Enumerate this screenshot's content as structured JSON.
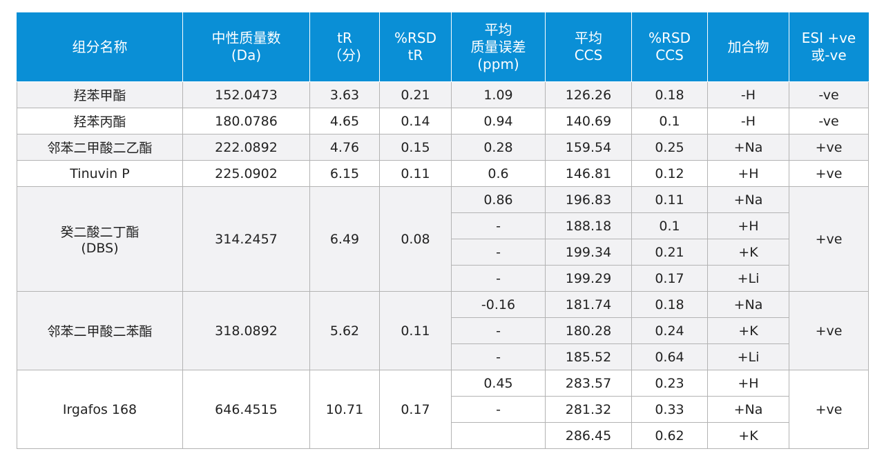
{
  "table": {
    "headers": [
      [
        "组分名称"
      ],
      [
        "中性质量数",
        "(Da)"
      ],
      [
        "tR",
        "（分)"
      ],
      [
        "%RSD",
        "tR"
      ],
      [
        "平均",
        "质量误差",
        "(ppm)"
      ],
      [
        "平均",
        "CCS"
      ],
      [
        "%RSD",
        "CCS"
      ],
      [
        "加合物"
      ],
      [
        "ESI +ve",
        "或-ve"
      ]
    ],
    "groups": [
      {
        "name": [
          "羟苯甲酯"
        ],
        "mass": "152.0473",
        "tr": "3.63",
        "rsd_tr": "0.21",
        "esi": "-ve",
        "adducts": [
          {
            "error": "1.09",
            "ccs": "126.26",
            "rsd_ccs": "0.18",
            "adduct": "-H"
          }
        ]
      },
      {
        "name": [
          "羟苯丙酯"
        ],
        "mass": "180.0786",
        "tr": "4.65",
        "rsd_tr": "0.14",
        "esi": "-ve",
        "adducts": [
          {
            "error": "0.94",
            "ccs": "140.69",
            "rsd_ccs": "0.1",
            "adduct": "-H"
          }
        ]
      },
      {
        "name": [
          "邻苯二甲酸二乙酯"
        ],
        "mass": "222.0892",
        "tr": "4.76",
        "rsd_tr": "0.15",
        "esi": "+ve",
        "adducts": [
          {
            "error": "0.28",
            "ccs": "159.54",
            "rsd_ccs": "0.25",
            "adduct": "+Na"
          }
        ]
      },
      {
        "name": [
          "Tinuvin P"
        ],
        "mass": "225.0902",
        "tr": "6.15",
        "rsd_tr": "0.11",
        "esi": "+ve",
        "adducts": [
          {
            "error": "0.6",
            "ccs": "146.81",
            "rsd_ccs": "0.12",
            "adduct": "+H"
          }
        ]
      },
      {
        "name": [
          "癸二酸二丁酯",
          "(DBS)"
        ],
        "mass": "314.2457",
        "tr": "6.49",
        "rsd_tr": "0.08",
        "esi": "+ve",
        "adducts": [
          {
            "error": "0.86",
            "ccs": "196.83",
            "rsd_ccs": "0.11",
            "adduct": "+Na"
          },
          {
            "error": "-",
            "ccs": "188.18",
            "rsd_ccs": "0.1",
            "adduct": "+H"
          },
          {
            "error": "-",
            "ccs": "199.34",
            "rsd_ccs": "0.21",
            "adduct": "+K"
          },
          {
            "error": "-",
            "ccs": "199.29",
            "rsd_ccs": "0.17",
            "adduct": "+Li"
          }
        ]
      },
      {
        "name": [
          "邻苯二甲酸二苯酯"
        ],
        "mass": "318.0892",
        "tr": "5.62",
        "rsd_tr": "0.11",
        "esi": "+ve",
        "adducts": [
          {
            "error": "-0.16",
            "ccs": "181.74",
            "rsd_ccs": "0.18",
            "adduct": "+Na"
          },
          {
            "error": "-",
            "ccs": "180.28",
            "rsd_ccs": "0.24",
            "adduct": "+K"
          },
          {
            "error": "-",
            "ccs": "185.52",
            "rsd_ccs": "0.64",
            "adduct": "+Li"
          }
        ]
      },
      {
        "name": [
          "Irgafos 168"
        ],
        "mass": "646.4515",
        "tr": "10.71",
        "rsd_tr": "0.17",
        "esi": "+ve",
        "adducts": [
          {
            "error": "0.45",
            "ccs": "283.57",
            "rsd_ccs": "0.23",
            "adduct": "+H"
          },
          {
            "error": "-",
            "ccs": "281.32",
            "rsd_ccs": "0.33",
            "adduct": "+Na"
          },
          {
            "error": "",
            "ccs": "286.45",
            "rsd_ccs": "0.62",
            "adduct": "+K"
          }
        ]
      }
    ]
  },
  "colors": {
    "header_bg": "#0a8fd6",
    "header_text": "#ffffff",
    "shade_row": "#f2f2f4",
    "grid": "#b3b3b3"
  }
}
